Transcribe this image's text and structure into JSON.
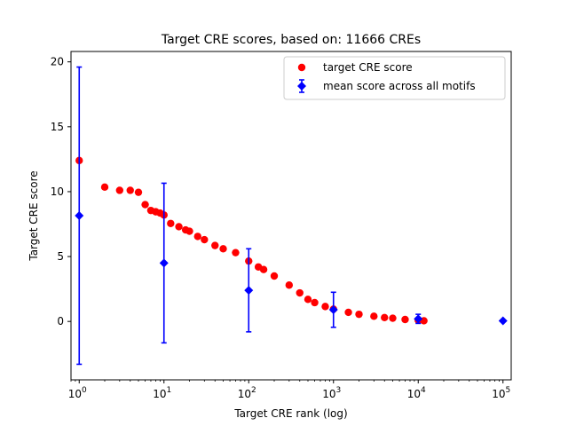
{
  "chart_data": {
    "type": "scatter",
    "title": "Target CRE scores, based on: 11666 CREs",
    "xlabel": "Target CRE rank (log)",
    "ylabel": "Target CRE score",
    "xscale": "log",
    "xlim": [
      0.8,
      125000
    ],
    "ylim": [
      -4.5,
      20.8
    ],
    "xticks": [
      {
        "value": 1,
        "base": "10",
        "exp": "0"
      },
      {
        "value": 10,
        "base": "10",
        "exp": "1"
      },
      {
        "value": 100,
        "base": "10",
        "exp": "2"
      },
      {
        "value": 1000,
        "base": "10",
        "exp": "3"
      },
      {
        "value": 10000,
        "base": "10",
        "exp": "4"
      },
      {
        "value": 100000,
        "base": "10",
        "exp": "5"
      }
    ],
    "yticks": [
      0,
      5,
      10,
      15,
      20
    ],
    "grid": false,
    "legend_position": "top-right",
    "series": [
      {
        "name": "target CRE score",
        "kind": "points",
        "color": "#ff0000",
        "marker": "circle",
        "points": [
          [
            1,
            12.4
          ],
          [
            2,
            10.35
          ],
          [
            3,
            10.1
          ],
          [
            4,
            10.1
          ],
          [
            5,
            9.95
          ],
          [
            6,
            9.0
          ],
          [
            7,
            8.55
          ],
          [
            8,
            8.45
          ],
          [
            9,
            8.35
          ],
          [
            10,
            8.2
          ],
          [
            12,
            7.55
          ],
          [
            15,
            7.3
          ],
          [
            18,
            7.05
          ],
          [
            20,
            6.95
          ],
          [
            25,
            6.55
          ],
          [
            30,
            6.3
          ],
          [
            40,
            5.85
          ],
          [
            50,
            5.6
          ],
          [
            70,
            5.3
          ],
          [
            100,
            4.65
          ],
          [
            130,
            4.2
          ],
          [
            150,
            4.0
          ],
          [
            200,
            3.5
          ],
          [
            300,
            2.8
          ],
          [
            400,
            2.2
          ],
          [
            500,
            1.7
          ],
          [
            600,
            1.45
          ],
          [
            800,
            1.15
          ],
          [
            1000,
            0.95
          ],
          [
            1500,
            0.7
          ],
          [
            2000,
            0.55
          ],
          [
            3000,
            0.4
          ],
          [
            4000,
            0.3
          ],
          [
            5000,
            0.25
          ],
          [
            7000,
            0.15
          ],
          [
            10000,
            0.1
          ],
          [
            11666,
            0.05
          ]
        ]
      },
      {
        "name": "mean score across all motifs",
        "kind": "errorbar",
        "color": "#0000ff",
        "marker": "diamond",
        "points": [
          {
            "x": 1,
            "y": 8.15,
            "err": 11.45
          },
          {
            "x": 10,
            "y": 4.5,
            "err": 6.15
          },
          {
            "x": 100,
            "y": 2.4,
            "err": 3.2
          },
          {
            "x": 1000,
            "y": 0.9,
            "err": 1.35
          },
          {
            "x": 10000,
            "y": 0.2,
            "err": 0.35
          },
          {
            "x": 100000,
            "y": 0.05,
            "err": 0
          }
        ]
      }
    ]
  }
}
